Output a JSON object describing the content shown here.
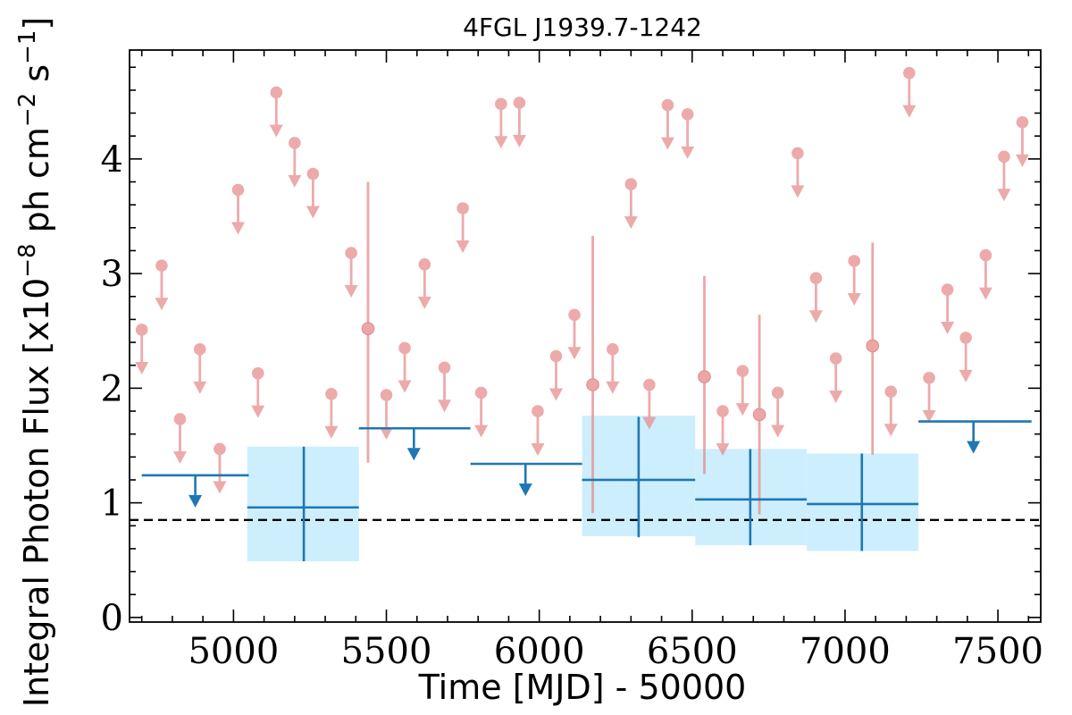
{
  "chart_data": {
    "type": "scatter",
    "title": "4FGL J1939.7-1242",
    "xlabel": "Time [MJD] - 50000",
    "ylabel": "Integral Photon Flux [x10",
    "ylabel_exp1": "−8",
    "ylabel_mid": " ph cm",
    "ylabel_exp2": "−2",
    "ylabel_end": " s",
    "ylabel_exp3": "−1",
    "ylabel_close": "]",
    "xlim": [
      4660,
      7640
    ],
    "ylim": [
      -0.04,
      4.95
    ],
    "x_ticks": [
      5000,
      5500,
      6000,
      6500,
      7000,
      7500
    ],
    "y_ticks": [
      0,
      1,
      2,
      3,
      4
    ],
    "grid": false,
    "reference_level": 0.85,
    "colors": {
      "fine_bins": "#e88e8e",
      "coarse_bins": "#1f77b4",
      "coarse_band": "#cdeefc",
      "reference_line": "#000000"
    },
    "fine_upper_limits": [
      {
        "x": 4700,
        "y": 2.51
      },
      {
        "x": 4765,
        "y": 3.07
      },
      {
        "x": 4825,
        "y": 1.73
      },
      {
        "x": 4890,
        "y": 2.34
      },
      {
        "x": 4955,
        "y": 1.47
      },
      {
        "x": 5015,
        "y": 3.73
      },
      {
        "x": 5080,
        "y": 2.13
      },
      {
        "x": 5140,
        "y": 4.58
      },
      {
        "x": 5200,
        "y": 4.14
      },
      {
        "x": 5260,
        "y": 3.87
      },
      {
        "x": 5320,
        "y": 1.95
      },
      {
        "x": 5385,
        "y": 3.18
      },
      {
        "x": 5500,
        "y": 1.94
      },
      {
        "x": 5560,
        "y": 2.35
      },
      {
        "x": 5625,
        "y": 3.08
      },
      {
        "x": 5690,
        "y": 2.18
      },
      {
        "x": 5750,
        "y": 3.57
      },
      {
        "x": 5810,
        "y": 1.96
      },
      {
        "x": 5875,
        "y": 4.48
      },
      {
        "x": 5935,
        "y": 4.49
      },
      {
        "x": 5995,
        "y": 1.8
      },
      {
        "x": 6055,
        "y": 2.28
      },
      {
        "x": 6115,
        "y": 2.64
      },
      {
        "x": 6240,
        "y": 2.34
      },
      {
        "x": 6300,
        "y": 3.78
      },
      {
        "x": 6360,
        "y": 2.03
      },
      {
        "x": 6420,
        "y": 4.47
      },
      {
        "x": 6485,
        "y": 4.39
      },
      {
        "x": 6600,
        "y": 1.8
      },
      {
        "x": 6665,
        "y": 2.15
      },
      {
        "x": 6780,
        "y": 1.96
      },
      {
        "x": 6845,
        "y": 4.05
      },
      {
        "x": 6905,
        "y": 2.96
      },
      {
        "x": 6970,
        "y": 2.26
      },
      {
        "x": 7030,
        "y": 3.11
      },
      {
        "x": 7150,
        "y": 1.97
      },
      {
        "x": 7210,
        "y": 4.75
      },
      {
        "x": 7275,
        "y": 2.09
      },
      {
        "x": 7335,
        "y": 2.86
      },
      {
        "x": 7395,
        "y": 2.44
      },
      {
        "x": 7460,
        "y": 3.16
      },
      {
        "x": 7520,
        "y": 4.02
      },
      {
        "x": 7580,
        "y": 4.32
      }
    ],
    "fine_detections": [
      {
        "x": 5440,
        "y": 2.52,
        "y_low": 1.35,
        "y_high": 3.8
      },
      {
        "x": 6175,
        "y": 2.03,
        "y_low": 0.91,
        "y_high": 3.33
      },
      {
        "x": 6540,
        "y": 2.1,
        "y_low": 1.25,
        "y_high": 2.98
      },
      {
        "x": 6720,
        "y": 1.77,
        "y_low": 0.9,
        "y_high": 2.64
      },
      {
        "x": 7090,
        "y": 2.37,
        "y_low": 1.42,
        "y_high": 3.27
      }
    ],
    "coarse_upper_limits": [
      {
        "x_start": 4700,
        "x_end": 5050,
        "x": 4875,
        "y": 1.24
      },
      {
        "x_start": 5410,
        "x_end": 5775,
        "x": 5590,
        "y": 1.65
      },
      {
        "x_start": 5775,
        "x_end": 6140,
        "x": 5955,
        "y": 1.34
      },
      {
        "x_start": 7240,
        "x_end": 7610,
        "x": 7420,
        "y": 1.71
      }
    ],
    "coarse_detections": [
      {
        "x_start": 5045,
        "x_end": 5410,
        "x": 5230,
        "y": 0.96,
        "y_low": 0.49,
        "y_high": 1.49,
        "band_low": 0.49,
        "band_high": 1.49
      },
      {
        "x_start": 6140,
        "x_end": 6510,
        "x": 6325,
        "y": 1.2,
        "y_low": 0.7,
        "y_high": 1.75,
        "band_low": 0.71,
        "band_high": 1.76
      },
      {
        "x_start": 6510,
        "x_end": 6875,
        "x": 6690,
        "y": 1.03,
        "y_low": 0.63,
        "y_high": 1.47,
        "band_low": 0.63,
        "band_high": 1.47
      },
      {
        "x_start": 6875,
        "x_end": 7240,
        "x": 7055,
        "y": 0.99,
        "y_low": 0.58,
        "y_high": 1.43,
        "band_low": 0.58,
        "band_high": 1.43
      }
    ]
  }
}
